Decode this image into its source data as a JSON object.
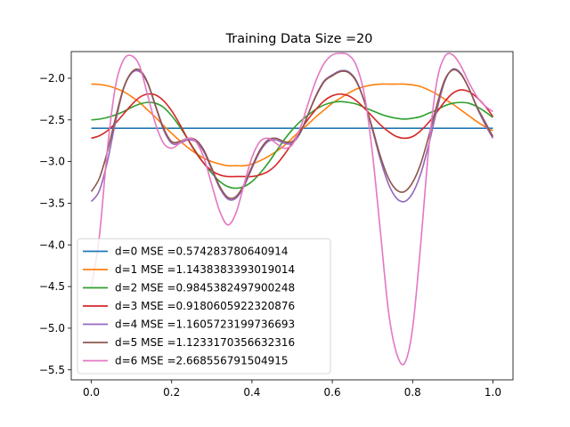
{
  "chart_data": {
    "type": "line",
    "title": "Training Data Size =20",
    "xlabel": "",
    "ylabel": "",
    "xlim": [
      -0.05,
      1.05
    ],
    "ylim": [
      -5.62,
      -1.68
    ],
    "xticks": [
      0.0,
      0.2,
      0.4,
      0.6,
      0.8,
      1.0
    ],
    "xtick_labels": [
      "0.0",
      "0.2",
      "0.4",
      "0.6",
      "0.8",
      "1.0"
    ],
    "yticks": [
      -2.0,
      -2.5,
      -3.0,
      -3.5,
      -4.0,
      -4.5,
      -5.0,
      -5.5
    ],
    "ytick_labels": [
      "−2.0",
      "−2.5",
      "−3.0",
      "−3.5",
      "−4.0",
      "−4.5",
      "−5.0",
      "−5.5"
    ],
    "grid": false,
    "legend_position": "lower-left",
    "x": [
      0.0,
      0.02,
      0.04,
      0.06,
      0.08,
      0.1,
      0.12,
      0.14,
      0.16,
      0.18,
      0.2,
      0.22,
      0.24,
      0.26,
      0.28,
      0.3,
      0.32,
      0.34,
      0.36,
      0.38,
      0.4,
      0.42,
      0.44,
      0.46,
      0.48,
      0.5,
      0.52,
      0.54,
      0.56,
      0.58,
      0.6,
      0.62,
      0.64,
      0.66,
      0.68,
      0.7,
      0.72,
      0.74,
      0.76,
      0.78,
      0.8,
      0.82,
      0.84,
      0.86,
      0.88,
      0.9,
      0.92,
      0.94,
      0.96,
      0.98,
      1.0
    ],
    "series": [
      {
        "name": "d=0 MSE =0.574283780640914",
        "color": "#1f77b4",
        "values": [
          -2.6,
          -2.6,
          -2.6,
          -2.6,
          -2.6,
          -2.6,
          -2.6,
          -2.6,
          -2.6,
          -2.6,
          -2.6,
          -2.6,
          -2.6,
          -2.6,
          -2.6,
          -2.6,
          -2.6,
          -2.6,
          -2.6,
          -2.6,
          -2.6,
          -2.6,
          -2.6,
          -2.6,
          -2.6,
          -2.6,
          -2.6,
          -2.6,
          -2.6,
          -2.6,
          -2.6,
          -2.6,
          -2.6,
          -2.6,
          -2.6,
          -2.6,
          -2.6,
          -2.6,
          -2.6,
          -2.6,
          -2.6,
          -2.6,
          -2.6,
          -2.6,
          -2.6,
          -2.6,
          -2.6,
          -2.6,
          -2.6,
          -2.6,
          -2.6
        ]
      },
      {
        "name": "d=1 MSE =1.1438383393019014",
        "color": "#ff7f0e",
        "values": [
          -2.07,
          -2.075,
          -2.09,
          -2.12,
          -2.16,
          -2.22,
          -2.29,
          -2.38,
          -2.47,
          -2.57,
          -2.66,
          -2.75,
          -2.83,
          -2.9,
          -2.96,
          -3.0,
          -3.03,
          -3.05,
          -3.05,
          -3.05,
          -3.03,
          -2.99,
          -2.94,
          -2.88,
          -2.81,
          -2.72,
          -2.63,
          -2.55,
          -2.46,
          -2.38,
          -2.3,
          -2.24,
          -2.18,
          -2.13,
          -2.1,
          -2.08,
          -2.07,
          -2.07,
          -2.07,
          -2.07,
          -2.08,
          -2.1,
          -2.14,
          -2.19,
          -2.25,
          -2.31,
          -2.38,
          -2.45,
          -2.52,
          -2.58,
          -2.63
        ]
      },
      {
        "name": "d=2 MSE =0.9845382497900248",
        "color": "#2ca02c",
        "values": [
          -2.5,
          -2.49,
          -2.47,
          -2.44,
          -2.4,
          -2.35,
          -2.31,
          -2.29,
          -2.3,
          -2.35,
          -2.45,
          -2.58,
          -2.73,
          -2.88,
          -3.02,
          -3.14,
          -3.24,
          -3.3,
          -3.32,
          -3.3,
          -3.24,
          -3.14,
          -3.02,
          -2.88,
          -2.74,
          -2.62,
          -2.52,
          -2.44,
          -2.37,
          -2.32,
          -2.29,
          -2.28,
          -2.29,
          -2.31,
          -2.35,
          -2.39,
          -2.43,
          -2.46,
          -2.48,
          -2.49,
          -2.48,
          -2.46,
          -2.42,
          -2.38,
          -2.33,
          -2.3,
          -2.29,
          -2.3,
          -2.34,
          -2.4,
          -2.47
        ]
      },
      {
        "name": "d=3 MSE =0.9180605922320876",
        "color": "#d62728",
        "values": [
          -2.72,
          -2.69,
          -2.63,
          -2.54,
          -2.43,
          -2.32,
          -2.23,
          -2.19,
          -2.2,
          -2.27,
          -2.39,
          -2.55,
          -2.73,
          -2.89,
          -3.02,
          -3.11,
          -3.16,
          -3.18,
          -3.18,
          -3.18,
          -3.18,
          -3.16,
          -3.12,
          -3.04,
          -2.92,
          -2.78,
          -2.63,
          -2.49,
          -2.37,
          -2.27,
          -2.21,
          -2.19,
          -2.21,
          -2.27,
          -2.36,
          -2.46,
          -2.56,
          -2.64,
          -2.7,
          -2.72,
          -2.7,
          -2.63,
          -2.53,
          -2.41,
          -2.28,
          -2.18,
          -2.14,
          -2.16,
          -2.23,
          -2.33,
          -2.46
        ]
      },
      {
        "name": "d=4 MSE =1.1605723199736693",
        "color": "#9467bd",
        "values": [
          -3.48,
          -3.35,
          -3.0,
          -2.53,
          -2.13,
          -1.94,
          -1.92,
          -2.06,
          -2.34,
          -2.62,
          -2.78,
          -2.78,
          -2.74,
          -2.76,
          -2.88,
          -3.1,
          -3.32,
          -3.45,
          -3.44,
          -3.3,
          -3.08,
          -2.88,
          -2.76,
          -2.74,
          -2.78,
          -2.78,
          -2.66,
          -2.43,
          -2.2,
          -2.03,
          -1.96,
          -1.91,
          -1.92,
          -2.03,
          -2.28,
          -2.62,
          -2.98,
          -3.27,
          -3.44,
          -3.48,
          -3.38,
          -3.15,
          -2.8,
          -2.39,
          -2.04,
          -1.89,
          -1.94,
          -2.12,
          -2.35,
          -2.55,
          -2.72
        ]
      },
      {
        "name": "d=5 MSE =1.1233170356632316",
        "color": "#8c564b",
        "values": [
          -3.36,
          -3.2,
          -2.88,
          -2.48,
          -2.12,
          -1.93,
          -1.9,
          -2.05,
          -2.33,
          -2.6,
          -2.76,
          -2.76,
          -2.72,
          -2.74,
          -2.86,
          -3.08,
          -3.3,
          -3.43,
          -3.42,
          -3.28,
          -3.06,
          -2.86,
          -2.74,
          -2.72,
          -2.76,
          -2.76,
          -2.65,
          -2.43,
          -2.21,
          -2.04,
          -1.97,
          -1.92,
          -1.93,
          -2.04,
          -2.28,
          -2.6,
          -2.94,
          -3.2,
          -3.34,
          -3.36,
          -3.25,
          -3.03,
          -2.7,
          -2.33,
          -2.02,
          -1.9,
          -1.95,
          -2.12,
          -2.34,
          -2.52,
          -2.7
        ]
      },
      {
        "name": "d=6 MSE =2.668556791504915",
        "color": "#e377c2",
        "values": [
          -4.5,
          -3.9,
          -2.85,
          -2.1,
          -1.78,
          -1.73,
          -1.85,
          -2.2,
          -2.55,
          -2.78,
          -2.84,
          -2.78,
          -2.72,
          -2.76,
          -2.95,
          -3.28,
          -3.6,
          -3.76,
          -3.62,
          -3.28,
          -2.95,
          -2.76,
          -2.72,
          -2.78,
          -2.84,
          -2.8,
          -2.6,
          -2.3,
          -2.02,
          -1.82,
          -1.72,
          -1.7,
          -1.72,
          -1.85,
          -2.2,
          -2.9,
          -3.85,
          -4.8,
          -5.3,
          -5.42,
          -5.0,
          -4.0,
          -2.85,
          -2.05,
          -1.74,
          -1.72,
          -1.85,
          -2.05,
          -2.22,
          -2.33,
          -2.4
        ]
      }
    ]
  }
}
